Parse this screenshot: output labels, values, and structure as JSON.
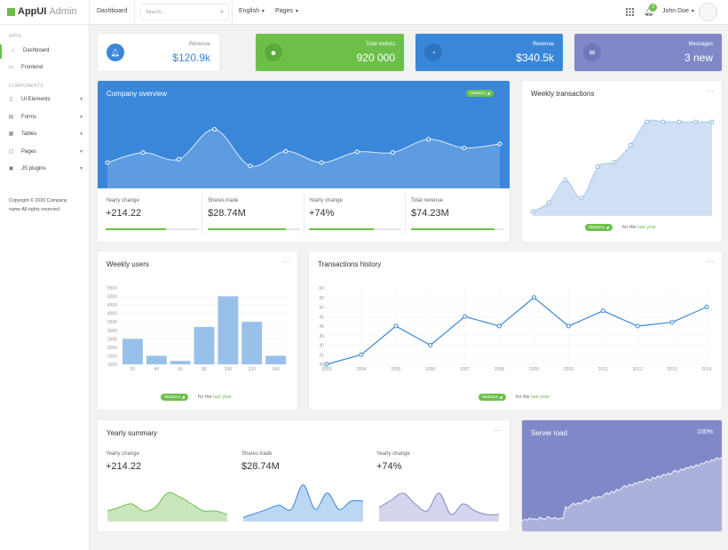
{
  "brand": {
    "name_bold": "AppUI",
    "name_light": "Admin"
  },
  "sidebar": {
    "section_apps": "APPS",
    "section_components": "COMPONENTS",
    "apps": [
      {
        "label": "Dashboard",
        "icon": "home-icon"
      },
      {
        "label": "Frontend",
        "icon": "monitor-icon"
      }
    ],
    "components": [
      {
        "label": "UI Elements",
        "icon": "ui-elements-icon"
      },
      {
        "label": "Forms",
        "icon": "forms-icon"
      },
      {
        "label": "Tables",
        "icon": "tables-icon"
      },
      {
        "label": "Pages",
        "icon": "pages-icon"
      },
      {
        "label": "JS plugins",
        "icon": "js-plugins-icon"
      }
    ],
    "copyright": "Copyright © 2020 Company name All rights reserved."
  },
  "topbar": {
    "page": "Dashboard",
    "search_placeholder": "Search...",
    "language": "English",
    "pages": "Pages",
    "notification_count": "3",
    "user": "John Doe"
  },
  "stats": [
    {
      "label": "Revenue",
      "value": "$120.9k",
      "icon": "bell-icon",
      "bg": "#ffffff",
      "accent": "#3a87d9"
    },
    {
      "label": "Total visitors",
      "value": "920 000",
      "icon": "users-icon",
      "bg": "#6cc04a",
      "accent": "#5aa93c"
    },
    {
      "label": "Revenue",
      "value": "$340.5k",
      "icon": "dashboard-icon",
      "bg": "#3a87d9",
      "accent": "#2f74c0"
    },
    {
      "label": "Messages",
      "value": "3 new",
      "icon": "envelope-icon",
      "bg": "#8088c8",
      "accent": "#6f78b9"
    }
  ],
  "company": {
    "title": "Company overview",
    "badge": "Statistics",
    "stats": [
      {
        "label": "Yearly change",
        "value": "+214.22",
        "fill": 0.65
      },
      {
        "label": "Shares trade",
        "value": "$28.74M",
        "fill": 0.85
      },
      {
        "label": "Yearly change",
        "value": "+74%",
        "fill": 0.7
      },
      {
        "label": "Total revenue",
        "value": "$74.23M",
        "fill": 0.9
      }
    ]
  },
  "weekly_transactions": {
    "title": "Weekly transactions",
    "badge": "Statistics",
    "for_the": "for the",
    "last_year": "last year"
  },
  "weekly_users": {
    "title": "Weekly users",
    "badge": "Statistics",
    "for_the": "for the",
    "last_year": "last year"
  },
  "transactions_history": {
    "title": "Transactions history",
    "badge": "Statistics",
    "for_the": "for the",
    "last_year": "last year"
  },
  "yearly_summary": {
    "title": "Yearly summary",
    "items": [
      {
        "label": "Yearly change",
        "value": "+214.22"
      },
      {
        "label": "Shares trade",
        "value": "$28.74M"
      },
      {
        "label": "Yearly change",
        "value": "+74%"
      }
    ]
  },
  "server_load": {
    "title": "Server load",
    "value": "100%"
  },
  "chart_data": [
    {
      "id": "company_overview",
      "type": "area",
      "x": [
        1,
        2,
        3,
        4,
        5,
        6,
        7,
        8,
        9,
        10,
        11,
        12
      ],
      "values": [
        2,
        3.5,
        2.5,
        7,
        1.5,
        3.7,
        2,
        3.6,
        3.5,
        5.5,
        4.2,
        4.8
      ],
      "ylim": [
        0,
        10
      ]
    },
    {
      "id": "weekly_transactions",
      "type": "area",
      "x": [
        1,
        2,
        3,
        4,
        5,
        6,
        7,
        8,
        9,
        10,
        11,
        12
      ],
      "values": [
        0,
        1,
        3.5,
        1.5,
        5,
        5.5,
        7.4,
        10,
        10,
        10,
        10,
        10
      ],
      "ylim": [
        0,
        11
      ]
    },
    {
      "id": "weekly_users",
      "type": "bar",
      "categories": [
        "20",
        "40",
        "60",
        "80",
        "100",
        "120",
        "140"
      ],
      "values": [
        2500,
        1500,
        1200,
        3200,
        5000,
        3500,
        1500
      ],
      "ylim": [
        1000,
        5500
      ],
      "yticks": [
        "5500",
        "5000",
        "4500",
        "4000",
        "3500",
        "3000",
        "2500",
        "2000",
        "1500",
        "1000"
      ]
    },
    {
      "id": "transactions_history",
      "type": "line",
      "categories": [
        "2003",
        "2004",
        "2005",
        "2006",
        "2007",
        "2008",
        "2009",
        "2010",
        "2011",
        "2012",
        "2013",
        "2014"
      ],
      "values": [
        20,
        25,
        40,
        30,
        45,
        40,
        55,
        40,
        48,
        40,
        42,
        50
      ],
      "ylim": [
        20,
        60
      ],
      "yticks": [
        "60",
        "55",
        "50",
        "45",
        "40",
        "35",
        "30",
        "25",
        "20"
      ]
    },
    {
      "id": "summary_1",
      "type": "area",
      "values": [
        3,
        4,
        5,
        3,
        4,
        8,
        7,
        5,
        3,
        3,
        2
      ],
      "ylim": [
        0,
        10
      ]
    },
    {
      "id": "summary_2",
      "type": "area",
      "values": [
        1,
        2,
        3,
        4,
        3,
        9,
        3,
        7,
        3,
        5,
        5
      ],
      "ylim": [
        0,
        10
      ]
    },
    {
      "id": "summary_3",
      "type": "area",
      "values": [
        4,
        6,
        8,
        5,
        3,
        8,
        2,
        5,
        3,
        2,
        2
      ],
      "ylim": [
        0,
        10
      ]
    },
    {
      "id": "server_load",
      "type": "area",
      "values": [
        10,
        12,
        11,
        14,
        12,
        13,
        11,
        15,
        13,
        12,
        16,
        14,
        13,
        15,
        12,
        14,
        13,
        30,
        28,
        32,
        35,
        33,
        36,
        34,
        38,
        40,
        37,
        41,
        44,
        42,
        45,
        43,
        47,
        50,
        48,
        52,
        50,
        55,
        53,
        57,
        60,
        58,
        62,
        60,
        64,
        63,
        66,
        65,
        68,
        70,
        67,
        72,
        70,
        74,
        72,
        76,
        75,
        78,
        76,
        80,
        82,
        79,
        84,
        82,
        86,
        85,
        88,
        86,
        90,
        88,
        92,
        91,
        95,
        93,
        97,
        96,
        100,
        98,
        100
      ]
    }
  ]
}
